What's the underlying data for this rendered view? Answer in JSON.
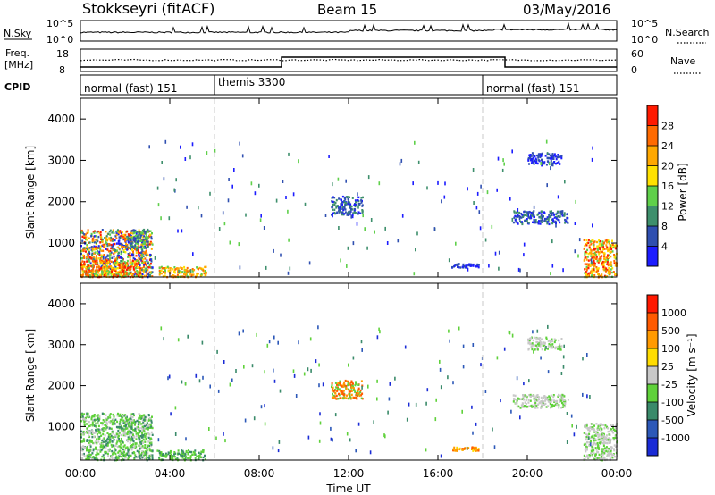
{
  "header": {
    "station": "Stokkseyri (fitACF)",
    "beam": "Beam 15",
    "date": "03/May/2016"
  },
  "strip_labels": {
    "nsky": "N.Sky",
    "nsearch": "N.Search",
    "freq_line1": "Freq.",
    "freq_line2": "[MHz]",
    "nave": "Nave",
    "cpid": "CPID",
    "nsky_top": "10^5",
    "nsky_bottom": "10^0",
    "nsearch_top": "10^5",
    "nsearch_bottom": "10^0",
    "freq_top": "18",
    "freq_bottom": "8",
    "nave_top": "60",
    "nave_bottom": "0"
  },
  "cpid_segments": [
    {
      "label": "normal (fast) 151",
      "start_hour": 0
    },
    {
      "label": "themis 3300",
      "start_hour": 6
    },
    {
      "label": "normal (fast) 151",
      "start_hour": 18
    }
  ],
  "x_axis": {
    "label": "Time UT",
    "ticks": [
      "00:00",
      "04:00",
      "08:00",
      "12:00",
      "16:00",
      "20:00",
      "00:00"
    ],
    "range_hours": [
      0,
      24
    ]
  },
  "freq_steps": [
    {
      "from_hour": 0,
      "to_hour": 9,
      "level": "low"
    },
    {
      "from_hour": 9,
      "to_hour": 19,
      "level": "high"
    },
    {
      "from_hour": 19,
      "to_hour": 24,
      "level": "low"
    }
  ],
  "chart_data": [
    {
      "type": "heatmap",
      "title": "",
      "xlabel": "Time UT",
      "ylabel": "Slant Range [km]",
      "ylim": [
        180,
        4500
      ],
      "y_ticks": [
        "1000",
        "2000",
        "3000",
        "4000"
      ],
      "colorbar": {
        "label": "Power [dB]",
        "ticks": [
          "4",
          "8",
          "12",
          "16",
          "20",
          "24",
          "28"
        ],
        "colors": [
          "#1c1cff",
          "#2f4fb0",
          "#3e8f6c",
          "#5fd04a",
          "#ffe100",
          "#ffa800",
          "#ff6a00",
          "#ff1a00"
        ]
      },
      "regions": [
        {
          "t0": 0.0,
          "t1": 3.2,
          "r0": 200,
          "r1": 1350,
          "dominant": "mixed low-high"
        },
        {
          "t0": 2.2,
          "t1": 3.0,
          "r0": 900,
          "r1": 1350,
          "dominant": "green-blue"
        },
        {
          "t0": 0.0,
          "t1": 2.8,
          "r0": 200,
          "r1": 600,
          "dominant": "orange-red"
        },
        {
          "t0": 3.4,
          "t1": 5.6,
          "r0": 200,
          "r1": 450,
          "dominant": "orange-yellow"
        },
        {
          "t0": 11.2,
          "t1": 12.6,
          "r0": 1700,
          "r1": 2150,
          "dominant": "blue-green"
        },
        {
          "t0": 16.6,
          "t1": 17.8,
          "r0": 430,
          "r1": 520,
          "dominant": "blue"
        },
        {
          "t0": 19.3,
          "t1": 21.8,
          "r0": 1480,
          "r1": 1800,
          "dominant": "blue-green"
        },
        {
          "t0": 20.0,
          "t1": 21.5,
          "r0": 2900,
          "r1": 3200,
          "dominant": "blue"
        },
        {
          "t0": 22.5,
          "t1": 24.0,
          "r0": 200,
          "r1": 1100,
          "dominant": "orange-red"
        }
      ]
    },
    {
      "type": "heatmap",
      "title": "",
      "xlabel": "Time UT",
      "ylabel": "Slant Range [km]",
      "ylim": [
        180,
        4500
      ],
      "y_ticks": [
        "1000",
        "2000",
        "3000",
        "4000"
      ],
      "colorbar": {
        "label": "Velocity [m s⁻¹]",
        "ticks": [
          "1000",
          "500",
          "100",
          "25",
          "-25",
          "-100",
          "-500",
          "-1000"
        ],
        "colors": [
          "#1a2bd6",
          "#2c58b8",
          "#3a8a6a",
          "#5fd13a",
          "#c8c8c8",
          "#ffdc00",
          "#ff9a00",
          "#ff5a00",
          "#ff1800"
        ]
      },
      "regions": [
        {
          "t0": 0.0,
          "t1": 3.2,
          "r0": 200,
          "r1": 1350,
          "dominant": "green-grey"
        },
        {
          "t0": 3.4,
          "t1": 5.6,
          "r0": 200,
          "r1": 450,
          "dominant": "green"
        },
        {
          "t0": 11.2,
          "t1": 12.6,
          "r0": 1700,
          "r1": 2150,
          "dominant": "green-orange"
        },
        {
          "t0": 16.6,
          "t1": 17.8,
          "r0": 430,
          "r1": 520,
          "dominant": "orange"
        },
        {
          "t0": 19.3,
          "t1": 21.8,
          "r0": 1480,
          "r1": 1800,
          "dominant": "grey"
        },
        {
          "t0": 20.0,
          "t1": 21.5,
          "r0": 2900,
          "r1": 3200,
          "dominant": "grey"
        },
        {
          "t0": 22.5,
          "t1": 24.0,
          "r0": 200,
          "r1": 1100,
          "dominant": "grey-green"
        }
      ]
    }
  ]
}
